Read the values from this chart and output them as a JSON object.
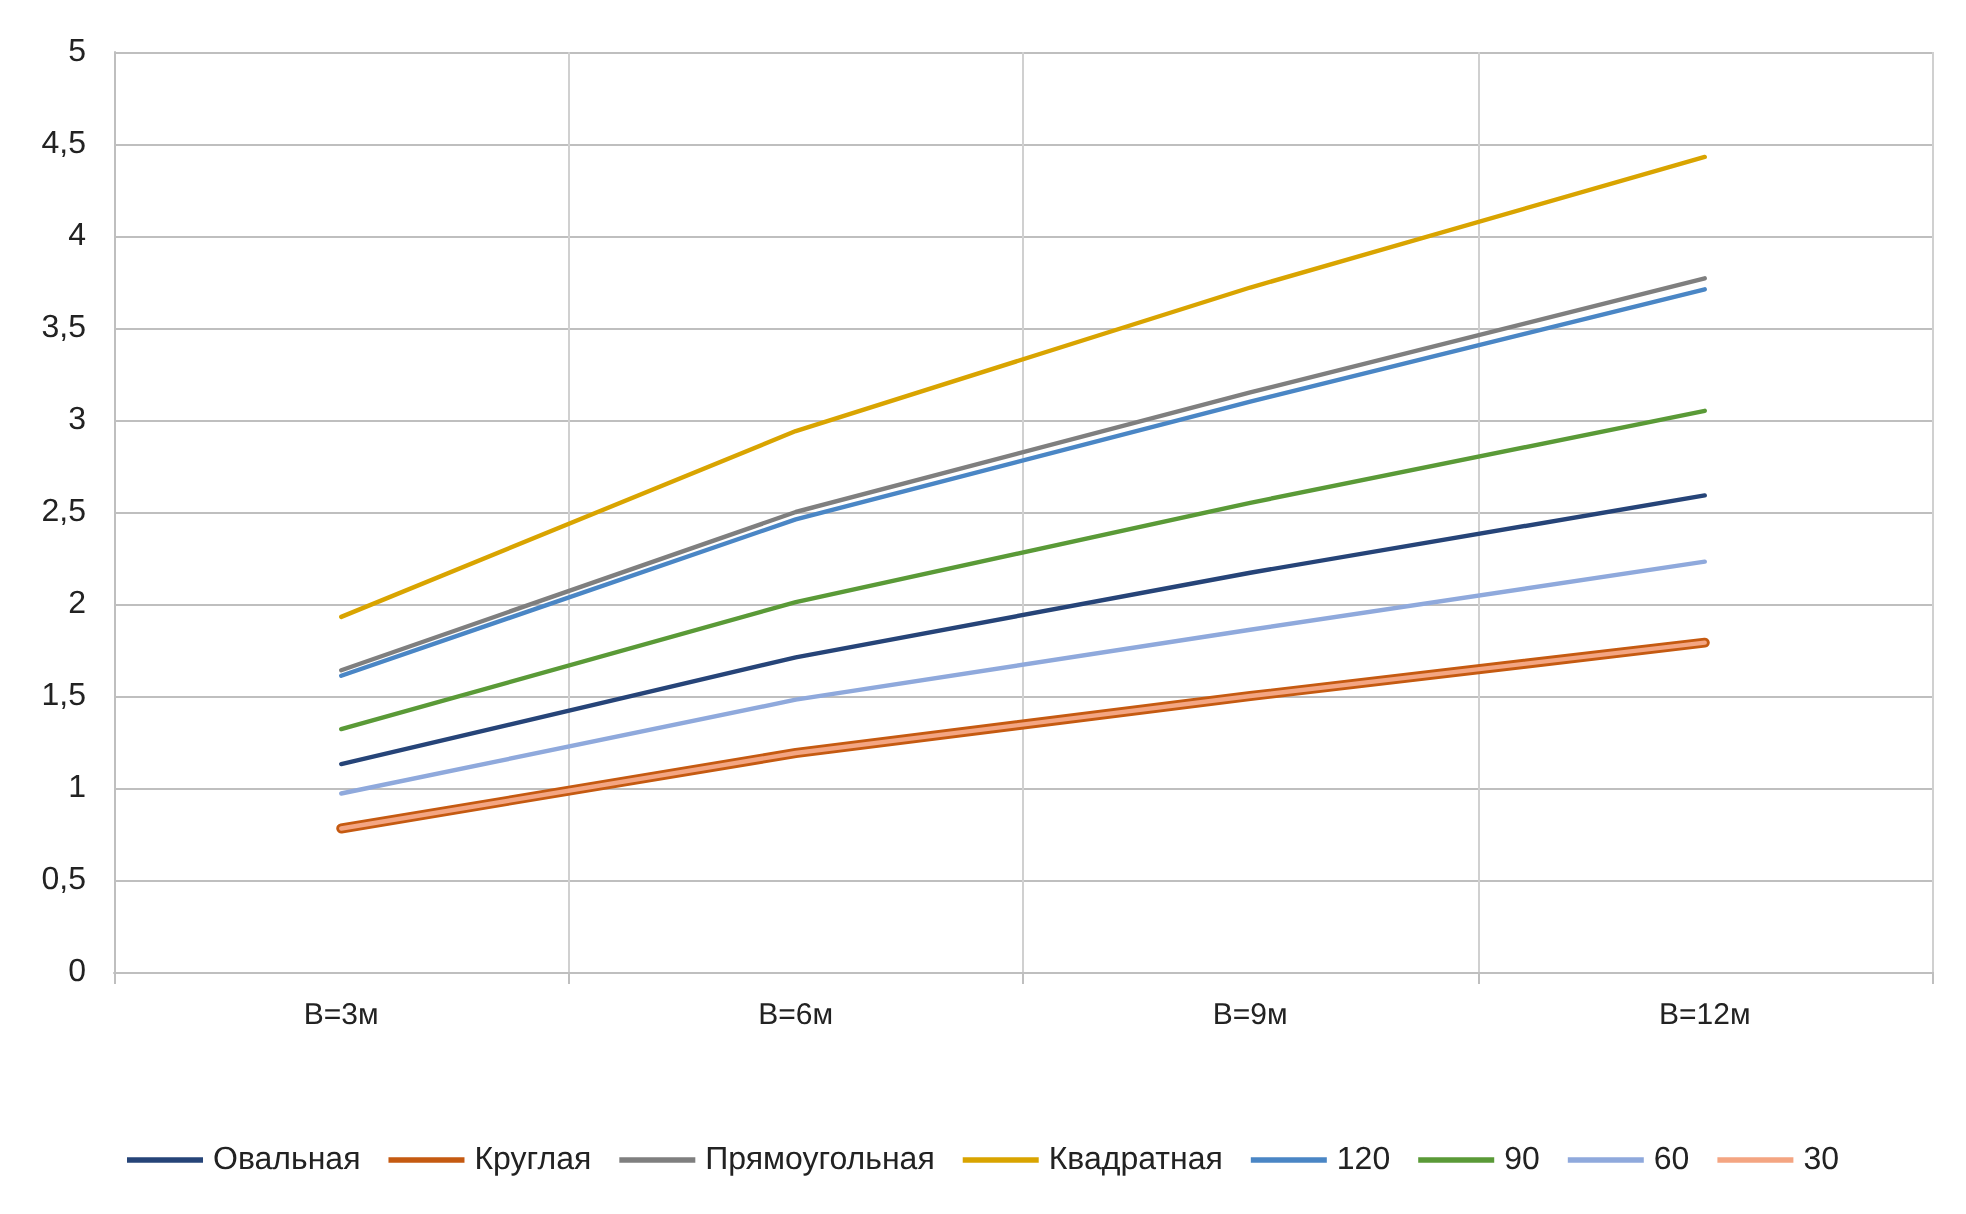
{
  "chart_data": {
    "type": "line",
    "categories": [
      "B=3м",
      "B=6м",
      "B=9м",
      "B=12м"
    ],
    "series": [
      {
        "name": "Овальная",
        "color": "#264478",
        "values": [
          1.13,
          1.71,
          2.17,
          2.59
        ]
      },
      {
        "name": "Круглая",
        "color": "#c55a11",
        "values": [
          0.78,
          1.19,
          1.5,
          1.79
        ]
      },
      {
        "name": "Прямоугольная",
        "color": "#7f7f7f",
        "values": [
          1.64,
          2.5,
          3.15,
          3.77
        ]
      },
      {
        "name": "Квадратная",
        "color": "#d9a400",
        "values": [
          1.93,
          2.94,
          3.72,
          4.43
        ]
      },
      {
        "name": "120",
        "color": "#4a86c5",
        "values": [
          1.61,
          2.46,
          3.1,
          3.71
        ]
      },
      {
        "name": "90",
        "color": "#5a9a37",
        "values": [
          1.32,
          2.01,
          2.55,
          3.05
        ]
      },
      {
        "name": "60",
        "color": "#8fa9dc",
        "values": [
          0.97,
          1.48,
          1.86,
          2.23
        ]
      },
      {
        "name": "30",
        "color": "#f4a582",
        "values": [
          0.78,
          1.19,
          1.5,
          1.79
        ]
      }
    ],
    "ylim": [
      0,
      5
    ],
    "yticks": [
      0,
      {
        "value": 0.5,
        "label": "0,5"
      },
      1,
      {
        "value": 1.5,
        "label": "1,5"
      },
      2,
      {
        "value": 2.5,
        "label": "2,5"
      },
      3,
      {
        "value": 3.5,
        "label": "3,5"
      },
      4,
      {
        "value": 4.5,
        "label": "4,5"
      },
      5
    ],
    "grid": true,
    "legend": "bottom",
    "marker": "none",
    "line_style": "solid"
  }
}
